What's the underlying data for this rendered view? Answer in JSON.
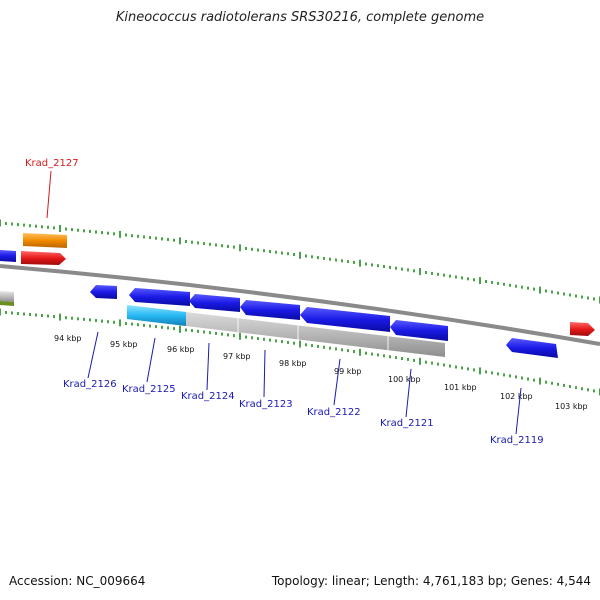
{
  "title": "Kineococcus radiotolerans SRS30216, complete genome",
  "footer": {
    "accession": "Accession: NC_009664",
    "summary": "Topology: linear; Length: 4,761,183 bp; Genes: 4,544"
  },
  "colors": {
    "tick": "#1a8a1a",
    "backbone": "#8a8a8a",
    "gene_forward": "#1a1ae6",
    "gene_reverse": "#e61a1a",
    "rna": "#f28c00",
    "pseudo": "#bdbdbd",
    "highlight": "#27b8f2",
    "label_blue": "#1a1ab3",
    "label_red": "#d41a1a"
  },
  "scale_labels": [
    "94 kbp",
    "95 kbp",
    "96 kbp",
    "97 kbp",
    "98 kbp",
    "99 kbp",
    "100 kbp",
    "101 kbp",
    "102 kbp",
    "103 kbp"
  ],
  "gene_labels": [
    "Krad_2127",
    "Krad_2126",
    "Krad_2125",
    "Krad_2124",
    "Krad_2123",
    "Krad_2122",
    "Krad_2121",
    "Krad_2119"
  ]
}
